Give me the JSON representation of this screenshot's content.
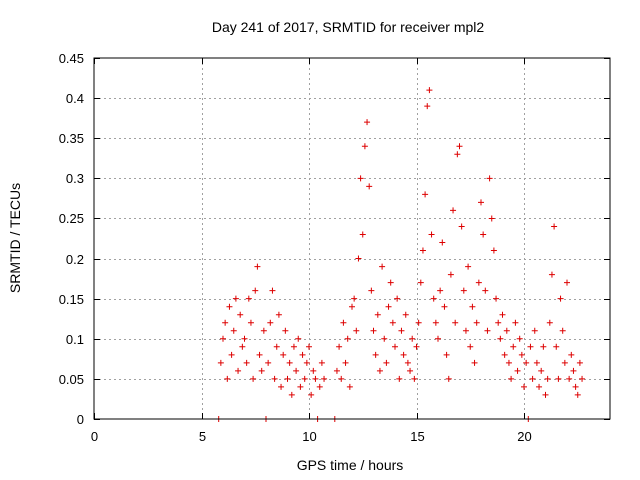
{
  "chart_data": {
    "type": "scatter",
    "title": "Day 241 of 2017, SRMTID for receiver mpl2",
    "xlabel": "GPS time / hours",
    "ylabel": "SRMTID / TECUs",
    "xlim": [
      0,
      24
    ],
    "ylim": [
      0,
      0.45
    ],
    "xticks": [
      0,
      5,
      10,
      15,
      20
    ],
    "xtick_labels": [
      "0",
      "5",
      "10",
      "15",
      "20"
    ],
    "yticks": [
      0,
      0.05,
      0.1,
      0.15,
      0.2,
      0.25,
      0.3,
      0.35,
      0.4,
      0.45
    ],
    "ytick_labels": [
      "0",
      "0.05",
      "0.1",
      "0.15",
      "0.2",
      "0.25",
      "0.3",
      "0.35",
      "0.4",
      "0.45"
    ],
    "grid": true,
    "legend": "none",
    "marker": "+",
    "series": [
      {
        "name": "SRMTID",
        "color": "#dd0000",
        "x": [
          5.8,
          5.9,
          6.0,
          6.1,
          6.2,
          6.3,
          6.4,
          6.5,
          6.6,
          6.7,
          6.8,
          6.9,
          7.0,
          7.1,
          7.2,
          7.3,
          7.4,
          7.5,
          7.6,
          7.7,
          7.8,
          7.9,
          8.0,
          8.1,
          8.2,
          8.3,
          8.4,
          8.5,
          8.6,
          8.7,
          8.8,
          8.9,
          9.0,
          9.1,
          9.2,
          9.3,
          9.4,
          9.5,
          9.6,
          9.7,
          9.8,
          9.9,
          10.0,
          10.1,
          10.2,
          10.3,
          10.4,
          10.5,
          10.6,
          10.7,
          11.2,
          11.3,
          11.4,
          11.5,
          11.6,
          11.7,
          11.8,
          11.9,
          12.0,
          12.1,
          12.2,
          12.3,
          12.4,
          12.5,
          12.6,
          12.7,
          12.8,
          12.9,
          13.0,
          13.1,
          13.2,
          13.3,
          13.4,
          13.5,
          13.6,
          13.7,
          13.8,
          13.9,
          14.0,
          14.1,
          14.2,
          14.3,
          14.4,
          14.5,
          14.6,
          14.7,
          14.8,
          14.9,
          15.0,
          15.1,
          15.2,
          15.3,
          15.4,
          15.5,
          15.6,
          15.7,
          15.8,
          15.9,
          16.0,
          16.1,
          16.2,
          16.3,
          16.4,
          16.5,
          16.6,
          16.7,
          16.8,
          16.9,
          17.0,
          17.1,
          17.2,
          17.3,
          17.4,
          17.5,
          17.6,
          17.7,
          17.8,
          17.9,
          18.0,
          18.1,
          18.2,
          18.3,
          18.4,
          18.5,
          18.6,
          18.7,
          18.8,
          18.9,
          19.0,
          19.1,
          19.2,
          19.3,
          19.4,
          19.5,
          19.6,
          19.7,
          19.8,
          19.9,
          20.0,
          20.1,
          20.2,
          20.3,
          20.4,
          20.5,
          20.6,
          20.7,
          20.8,
          20.9,
          21.0,
          21.1,
          21.2,
          21.3,
          21.4,
          21.5,
          21.6,
          21.7,
          21.8,
          21.9,
          22.0,
          22.1,
          22.2,
          22.3,
          22.4,
          22.5,
          22.6,
          22.7
        ],
        "y": [
          0.0,
          0.07,
          0.1,
          0.12,
          0.05,
          0.14,
          0.08,
          0.11,
          0.15,
          0.06,
          0.13,
          0.09,
          0.1,
          0.07,
          0.15,
          0.12,
          0.05,
          0.16,
          0.19,
          0.08,
          0.06,
          0.11,
          0.0,
          0.07,
          0.12,
          0.16,
          0.05,
          0.09,
          0.13,
          0.04,
          0.08,
          0.11,
          0.05,
          0.07,
          0.03,
          0.09,
          0.06,
          0.1,
          0.04,
          0.08,
          0.05,
          0.07,
          0.09,
          0.03,
          0.06,
          0.05,
          0.0,
          0.04,
          0.07,
          0.05,
          0.0,
          0.06,
          0.09,
          0.05,
          0.12,
          0.07,
          0.1,
          0.04,
          0.14,
          0.15,
          0.11,
          0.2,
          0.3,
          0.23,
          0.34,
          0.37,
          0.29,
          0.16,
          0.11,
          0.08,
          0.13,
          0.06,
          0.19,
          0.1,
          0.07,
          0.14,
          0.17,
          0.12,
          0.09,
          0.15,
          0.05,
          0.11,
          0.08,
          0.13,
          0.07,
          0.06,
          0.1,
          0.05,
          0.09,
          0.12,
          0.17,
          0.21,
          0.28,
          0.39,
          0.41,
          0.23,
          0.15,
          0.12,
          0.1,
          0.16,
          0.22,
          0.14,
          0.08,
          0.05,
          0.18,
          0.26,
          0.12,
          0.33,
          0.34,
          0.24,
          0.16,
          0.11,
          0.19,
          0.09,
          0.14,
          0.07,
          0.12,
          0.17,
          0.27,
          0.23,
          0.16,
          0.11,
          0.3,
          0.25,
          0.21,
          0.15,
          0.12,
          0.1,
          0.13,
          0.08,
          0.11,
          0.07,
          0.05,
          0.09,
          0.12,
          0.06,
          0.1,
          0.08,
          0.04,
          0.07,
          0.0,
          0.09,
          0.05,
          0.11,
          0.07,
          0.04,
          0.06,
          0.09,
          0.03,
          0.05,
          0.12,
          0.18,
          0.24,
          0.09,
          0.05,
          0.15,
          0.11,
          0.07,
          0.17,
          0.05,
          0.08,
          0.06,
          0.04,
          0.03,
          0.07,
          0.05
        ]
      }
    ]
  }
}
